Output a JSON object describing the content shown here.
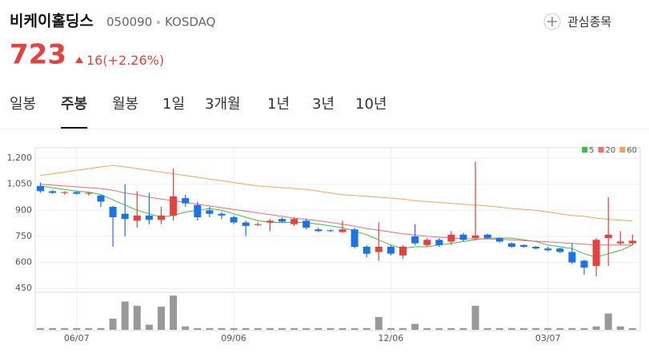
{
  "header": {
    "name": "비케이홀딩스",
    "code": "050090",
    "market": "KOSDAQ",
    "watch_button": "관심종목",
    "price": "723",
    "change": "16",
    "change_pct": "(+2.26%)"
  },
  "tabs": [
    "일봉",
    "주봉",
    "월봉",
    "1일",
    "3개월",
    "1년",
    "3년",
    "10년"
  ],
  "active_tab": 1,
  "chart_data": {
    "type": "candlestick",
    "categories": [
      null,
      null,
      null,
      "06/07",
      null,
      null,
      null,
      null,
      null,
      null,
      null,
      null,
      null,
      null,
      null,
      null,
      "09/06",
      null,
      null,
      null,
      null,
      null,
      null,
      null,
      null,
      null,
      null,
      null,
      null,
      "12/06",
      null,
      null,
      null,
      null,
      null,
      null,
      null,
      null,
      null,
      null,
      null,
      null,
      "03/07",
      null,
      null,
      null,
      null,
      null,
      null,
      null
    ],
    "open": [
      1040,
      1010,
      1000,
      1005,
      995,
      985,
      920,
      880,
      840,
      870,
      845,
      870,
      970,
      930,
      900,
      880,
      860,
      830,
      815,
      830,
      850,
      820,
      840,
      790,
      785,
      775,
      790,
      690,
      660,
      690,
      640,
      750,
      700,
      730,
      720,
      760,
      740,
      760,
      740,
      710,
      700,
      690,
      680,
      680,
      660,
      610,
      580,
      740,
      710,
      710
    ],
    "high": [
      1060,
      1015,
      1010,
      1010,
      1005,
      990,
      925,
      1050,
      1010,
      1000,
      920,
      1140,
      990,
      950,
      920,
      890,
      870,
      840,
      830,
      850,
      860,
      860,
      850,
      800,
      790,
      840,
      800,
      700,
      830,
      700,
      700,
      820,
      740,
      740,
      780,
      770,
      1180,
      765,
      745,
      715,
      705,
      695,
      690,
      685,
      710,
      615,
      740,
      975,
      780,
      760
    ],
    "low": [
      1000,
      995,
      990,
      990,
      985,
      920,
      690,
      750,
      800,
      820,
      820,
      840,
      920,
      840,
      860,
      850,
      820,
      750,
      810,
      780,
      830,
      810,
      790,
      775,
      775,
      770,
      680,
      630,
      610,
      640,
      620,
      700,
      690,
      690,
      700,
      720,
      735,
      735,
      715,
      685,
      685,
      675,
      665,
      655,
      590,
      530,
      520,
      580,
      700,
      700
    ],
    "close": [
      1010,
      1000,
      1005,
      995,
      1000,
      950,
      860,
      850,
      870,
      845,
      870,
      980,
      940,
      860,
      880,
      870,
      830,
      810,
      820,
      840,
      835,
      850,
      800,
      780,
      780,
      790,
      690,
      650,
      690,
      650,
      690,
      710,
      730,
      700,
      760,
      730,
      755,
      740,
      720,
      690,
      690,
      680,
      670,
      660,
      600,
      570,
      730,
      760,
      720,
      725
    ],
    "up_color": "#e8403f",
    "down_color": "#1a73e8",
    "volume": [
      2,
      2,
      2,
      2,
      2,
      2,
      13,
      33,
      28,
      6,
      27,
      40,
      4,
      2,
      2,
      2,
      2,
      2,
      2,
      2,
      2,
      2,
      2,
      2,
      2,
      2,
      2,
      2,
      15,
      2,
      2,
      7,
      2,
      2,
      2,
      2,
      28,
      2,
      2,
      2,
      2,
      2,
      2,
      2,
      2,
      2,
      4,
      19,
      4,
      2
    ],
    "volume_color": "#999999",
    "series": [
      {
        "name": "5",
        "color": "#3cc03c",
        "values": [
          1040,
          1030,
          1020,
          1010,
          1005,
          990,
          960,
          930,
          900,
          880,
          860,
          870,
          890,
          900,
          910,
          900,
          880,
          860,
          840,
          830,
          830,
          830,
          830,
          820,
          810,
          800,
          780,
          760,
          730,
          700,
          680,
          690,
          690,
          700,
          710,
          720,
          730,
          740,
          740,
          740,
          730,
          720,
          700,
          690,
          680,
          650,
          630,
          650,
          670,
          700
        ]
      },
      {
        "name": "20",
        "color": "#f26b6b",
        "values": [
          1050,
          1045,
          1040,
          1035,
          1030,
          1025,
          1015,
          1000,
          990,
          975,
          965,
          955,
          945,
          935,
          925,
          915,
          905,
          895,
          885,
          875,
          865,
          855,
          848,
          840,
          830,
          820,
          808,
          795,
          785,
          775,
          765,
          757,
          750,
          745,
          740,
          737,
          735,
          735,
          733,
          730,
          725,
          722,
          718,
          714,
          710,
          705,
          700,
          700,
          700,
          700
        ]
      },
      {
        "name": "60",
        "color": "#f5a35c",
        "values": [
          1100,
          1110,
          1120,
          1130,
          1140,
          1150,
          1158,
          1150,
          1140,
          1130,
          1120,
          1110,
          1100,
          1090,
          1080,
          1070,
          1060,
          1050,
          1040,
          1035,
          1030,
          1025,
          1020,
          1010,
          1000,
          990,
          985,
          980,
          975,
          970,
          965,
          955,
          950,
          945,
          940,
          935,
          930,
          925,
          918,
          910,
          905,
          900,
          890,
          880,
          870,
          865,
          855,
          848,
          843,
          838
        ]
      }
    ],
    "ylim": [
      428,
      1260
    ],
    "yticks": [
      {
        "value": 1200,
        "label": "1,200"
      },
      {
        "value": 1050,
        "label": "1,050"
      },
      900,
      750,
      600,
      450
    ],
    "grid": true,
    "legend": "top-right"
  }
}
